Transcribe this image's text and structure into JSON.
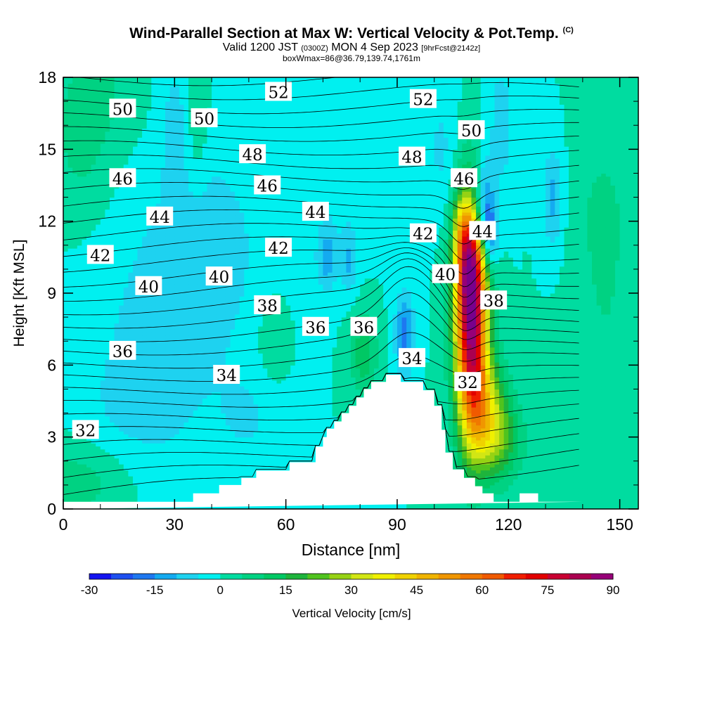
{
  "header": {
    "title": "Wind-Parallel Section at Max W: Vertical Velocity & Pot.Temp.",
    "copyright": "(C)",
    "valid_a": "Valid 1200 JST",
    "valid_zulu": "(0300Z)",
    "valid_b": "MON 4 Sep 2023",
    "forecast": "[9hrFcst@2142z]",
    "box_info": "boxWmax=86@36.79,139.74,1761m"
  },
  "chart_data": {
    "type": "heatmap",
    "xlabel": "Distance [nm]",
    "ylabel": "Height [Kft MSL]",
    "xlim": [
      0,
      155
    ],
    "ylim": [
      0,
      18
    ],
    "x_ticks": [
      0,
      30,
      60,
      90,
      120,
      150
    ],
    "y_ticks": [
      0,
      3,
      6,
      9,
      12,
      15,
      18
    ],
    "colorbar": {
      "label": "Vertical Velocity [cm/s]",
      "tick_labels": [
        "-30",
        "-15",
        "0",
        "15",
        "30",
        "45",
        "60",
        "75",
        "90"
      ],
      "levels": [
        -30,
        -25,
        -20,
        -15,
        -10,
        -5,
        0,
        5,
        10,
        15,
        20,
        25,
        30,
        35,
        40,
        45,
        50,
        55,
        60,
        65,
        70,
        75,
        80,
        85,
        90
      ],
      "colors": [
        "#1414f0",
        "#1e50f0",
        "#1e78f0",
        "#14aaf0",
        "#1ed2f0",
        "#00f0f0",
        "#00dca0",
        "#00d282",
        "#00c864",
        "#1eb43c",
        "#50c31e",
        "#96d214",
        "#d2e614",
        "#f0f000",
        "#f0d200",
        "#f0b400",
        "#f09600",
        "#f07800",
        "#f05a00",
        "#f01e00",
        "#e10000",
        "#c80032",
        "#aa0050",
        "#960078",
        "#78008c"
      ]
    },
    "terrain_profile": {
      "x": [
        0,
        35,
        35,
        42,
        42,
        48,
        48,
        52,
        52,
        55,
        55,
        61,
        61,
        68,
        68,
        70,
        70,
        71,
        71,
        73,
        73,
        75,
        75,
        77,
        77,
        79,
        79,
        81,
        81,
        83,
        83,
        85,
        85,
        87,
        87,
        91,
        91,
        97,
        97,
        100,
        100,
        102,
        102,
        103,
        103,
        105,
        105,
        108,
        108,
        111,
        111,
        113,
        113,
        116,
        116,
        123,
        123,
        128,
        128,
        133,
        133,
        140,
        140,
        155
      ],
      "y": [
        0.3,
        0.3,
        0.65,
        0.65,
        1.0,
        1.0,
        1.3,
        1.3,
        1.6,
        1.6,
        1.6,
        1.6,
        1.95,
        1.95,
        2.6,
        2.6,
        3.0,
        3.0,
        3.35,
        3.35,
        3.65,
        3.65,
        4.0,
        4.0,
        4.3,
        4.3,
        4.65,
        4.65,
        5.0,
        5.0,
        5.3,
        5.3,
        5.3,
        5.3,
        5.6,
        5.6,
        5.3,
        5.3,
        4.95,
        4.95,
        4.3,
        4.3,
        3.3,
        3.3,
        2.35,
        2.35,
        1.65,
        1.65,
        1.3,
        1.3,
        0.95,
        0.95,
        0.65,
        0.65,
        0.3,
        0.3,
        0.65,
        0.65,
        0.3,
        0.3,
        0.3,
        0.3
      ]
    },
    "theta_contour_labels": [
      {
        "text": "52",
        "x": 58,
        "y": 17.4
      },
      {
        "text": "52",
        "x": 97,
        "y": 17.1
      },
      {
        "text": "50",
        "x": 16,
        "y": 16.7
      },
      {
        "text": "50",
        "x": 38,
        "y": 16.3
      },
      {
        "text": "50",
        "x": 110,
        "y": 15.8
      },
      {
        "text": "48",
        "x": 51,
        "y": 14.8
      },
      {
        "text": "48",
        "x": 94,
        "y": 14.7
      },
      {
        "text": "46",
        "x": 16,
        "y": 13.8
      },
      {
        "text": "46",
        "x": 55,
        "y": 13.5
      },
      {
        "text": "46",
        "x": 108,
        "y": 13.8
      },
      {
        "text": "44",
        "x": 26,
        "y": 12.2
      },
      {
        "text": "44",
        "x": 68,
        "y": 12.4
      },
      {
        "text": "44",
        "x": 113,
        "y": 11.6
      },
      {
        "text": "42",
        "x": 10,
        "y": 10.6
      },
      {
        "text": "42",
        "x": 58,
        "y": 10.9
      },
      {
        "text": "42",
        "x": 97,
        "y": 11.5
      },
      {
        "text": "40",
        "x": 23,
        "y": 9.3
      },
      {
        "text": "40",
        "x": 42,
        "y": 9.7
      },
      {
        "text": "40",
        "x": 103,
        "y": 9.8
      },
      {
        "text": "38",
        "x": 55,
        "y": 8.5
      },
      {
        "text": "38",
        "x": 116,
        "y": 8.7
      },
      {
        "text": "36",
        "x": 68,
        "y": 7.6
      },
      {
        "text": "36",
        "x": 81,
        "y": 7.6
      },
      {
        "text": "36",
        "x": 16,
        "y": 6.6
      },
      {
        "text": "34",
        "x": 44,
        "y": 5.6
      },
      {
        "text": "34",
        "x": 94,
        "y": 6.3
      },
      {
        "text": "32",
        "x": 6,
        "y": 3.3
      },
      {
        "text": "32",
        "x": 109,
        "y": 5.3
      }
    ]
  }
}
